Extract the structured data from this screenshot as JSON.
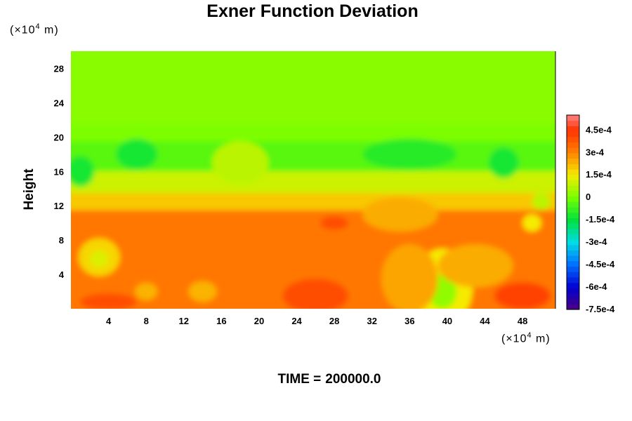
{
  "title": "Exner Function Deviation",
  "time_label": "TIME =",
  "time_value": "200000.0",
  "chart_data": {
    "type": "heatmap",
    "title": "Exner Function Deviation",
    "ylabel": "Height",
    "xlabel": "",
    "x_unit_prefix": "(×10",
    "x_unit_exp": "4",
    "x_unit_suffix": " m)",
    "y_unit_prefix": "(×10",
    "y_unit_exp": "4",
    "y_unit_suffix": " m)",
    "xlim": [
      0,
      51.5
    ],
    "ylim": [
      0,
      30
    ],
    "x_ticks": [
      4,
      8,
      12,
      16,
      20,
      24,
      28,
      32,
      36,
      40,
      44,
      48
    ],
    "y_ticks": [
      4,
      8,
      12,
      16,
      20,
      24,
      28
    ],
    "colorbar": {
      "range": [
        -0.00075,
        0.00055
      ],
      "tick_values": [
        0.00045,
        0.0003,
        0.00015,
        0,
        -0.00015,
        -0.0003,
        -0.00045,
        -0.0006,
        -0.00075
      ],
      "tick_labels": [
        "4.5e-4",
        "3e-4",
        "1.5e-4",
        "0",
        "-1.5e-4",
        "-3e-4",
        "-4.5e-4",
        "-6e-4",
        "-7.5e-4"
      ]
    },
    "field": {
      "layers": [
        {
          "y_range": [
            21.5,
            30
          ],
          "value": 2e-05
        },
        {
          "y_range": [
            19.5,
            21.5
          ],
          "value": 5e-06
        },
        {
          "y_range": [
            16,
            19.5
          ],
          "value": -4e-05
        },
        {
          "y_range": [
            13.5,
            16
          ],
          "value": 0.0001
        },
        {
          "y_range": [
            11.5,
            13.5
          ],
          "value": 0.0002
        },
        {
          "y_range": [
            0,
            11.5
          ],
          "value": 0.00032
        }
      ],
      "features": [
        {
          "x": 7,
          "y": 18,
          "rx": 2.2,
          "ry": 1.8,
          "value": -0.00012
        },
        {
          "x": 36,
          "y": 18,
          "rx": 5,
          "ry": 1.8,
          "value": -0.0001
        },
        {
          "x": 46,
          "y": 17,
          "rx": 1.6,
          "ry": 1.8,
          "value": -0.00012
        },
        {
          "x": 1,
          "y": 16,
          "rx": 1.5,
          "ry": 1.8,
          "value": -0.00012
        },
        {
          "x": 18,
          "y": 17,
          "rx": 3,
          "ry": 2.5,
          "value": 8e-05
        },
        {
          "x": 3,
          "y": 6,
          "rx": 2.2,
          "ry": 2.2,
          "value": 0.00018
        },
        {
          "x": 3,
          "y": 5.8,
          "rx": 1.0,
          "ry": 1.0,
          "value": 0.00012
        },
        {
          "x": 39.5,
          "y": 2.5,
          "rx": 3.2,
          "ry": 4.5,
          "value": 0.00015
        },
        {
          "x": 39.5,
          "y": 2,
          "rx": 1.5,
          "ry": 2,
          "value": 3e-05
        },
        {
          "x": 49,
          "y": 10,
          "rx": 1,
          "ry": 1,
          "value": 0.00015
        },
        {
          "x": 50,
          "y": 12.5,
          "rx": 1,
          "ry": 1,
          "value": 8e-05
        },
        {
          "x": 8,
          "y": 2,
          "rx": 1.2,
          "ry": 1,
          "value": 0.00023
        },
        {
          "x": 14,
          "y": 2,
          "rx": 1.5,
          "ry": 1.2,
          "value": 0.00023
        },
        {
          "x": 26,
          "y": 1.5,
          "rx": 3.5,
          "ry": 2,
          "value": 0.0004
        },
        {
          "x": 36,
          "y": 3.5,
          "rx": 3,
          "ry": 4,
          "value": 0.00025
        },
        {
          "x": 48,
          "y": 1.5,
          "rx": 3,
          "ry": 1.6,
          "value": 0.00042
        },
        {
          "x": 43,
          "y": 5,
          "rx": 4,
          "ry": 2.5,
          "value": 0.00024
        },
        {
          "x": 35,
          "y": 11,
          "rx": 4,
          "ry": 2,
          "value": 0.00024
        },
        {
          "x": 4,
          "y": 0.8,
          "rx": 3,
          "ry": 1,
          "value": 0.0004
        },
        {
          "x": 28,
          "y": 10,
          "rx": 1.5,
          "ry": 0.8,
          "value": 0.0004
        }
      ]
    }
  }
}
